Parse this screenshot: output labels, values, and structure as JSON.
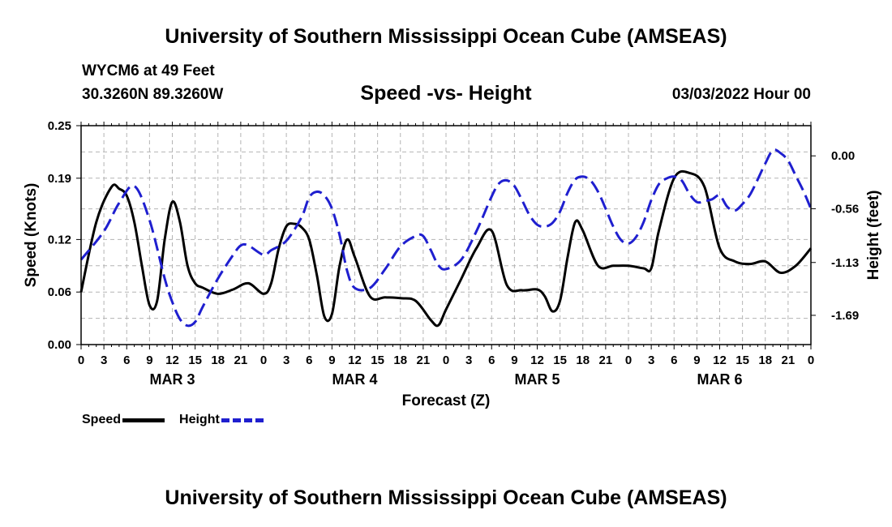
{
  "header": {
    "title": "University of Southern Mississippi Ocean Cube (AMSEAS)",
    "station": "WYCM6 at 49 Feet",
    "coords": "30.3260N  89.3260W",
    "subtitle": "Speed -vs- Height",
    "datetime": "03/03/2022 Hour 00"
  },
  "footer": {
    "title": "University of Southern Mississippi Ocean Cube (AMSEAS)"
  },
  "legend": {
    "speed": "Speed",
    "height": "Height"
  },
  "colors": {
    "speed": "#000000",
    "height": "#1f1fcf",
    "grid": "#b4b4b4"
  },
  "chart_data": {
    "type": "line",
    "title": "Speed -vs- Height",
    "xlabel": "Forecast (Z)",
    "ylabel": "Speed (Knots)",
    "y2label": "Height (feet)",
    "x_range": [
      0,
      96
    ],
    "x_tick_labels": [
      "0",
      "3",
      "6",
      "9",
      "12",
      "15",
      "18",
      "21",
      "0",
      "3",
      "6",
      "9",
      "12",
      "15",
      "18",
      "21",
      "0",
      "3",
      "6",
      "9",
      "12",
      "15",
      "18",
      "21",
      "0",
      "3",
      "6",
      "9",
      "12",
      "15",
      "18",
      "21",
      "0"
    ],
    "day_labels": [
      "MAR 3",
      "MAR 4",
      "MAR 5",
      "MAR 6"
    ],
    "ylim": [
      0,
      0.25
    ],
    "yticks": [
      "0.00",
      "0.06",
      "0.12",
      "0.19",
      "0.25"
    ],
    "y2lim": [
      -2.0,
      0.32
    ],
    "y2ticks": [
      "0.00",
      "-0.56",
      "-1.13",
      "-1.69"
    ],
    "series": [
      {
        "name": "Speed",
        "axis": "left",
        "x": [
          0,
          2,
          4,
          5,
          6,
          7,
          8,
          9,
          10,
          11,
          12,
          13,
          14,
          15,
          16,
          18,
          20,
          22,
          24,
          25,
          26,
          27,
          28,
          29,
          30,
          31,
          32,
          33,
          34,
          35,
          36,
          38,
          40,
          42,
          44,
          46,
          47,
          48,
          50,
          52,
          54,
          56,
          58,
          60,
          61,
          62,
          63,
          64,
          65,
          66,
          68,
          70,
          72,
          74,
          75,
          76,
          78,
          80,
          82,
          84,
          86,
          88,
          90,
          92,
          94,
          96
        ],
        "y": [
          0.06,
          0.14,
          0.18,
          0.178,
          0.17,
          0.14,
          0.09,
          0.045,
          0.05,
          0.12,
          0.163,
          0.14,
          0.09,
          0.07,
          0.065,
          0.058,
          0.063,
          0.07,
          0.058,
          0.07,
          0.11,
          0.135,
          0.138,
          0.134,
          0.12,
          0.08,
          0.032,
          0.035,
          0.09,
          0.12,
          0.1,
          0.055,
          0.054,
          0.053,
          0.05,
          0.028,
          0.022,
          0.04,
          0.075,
          0.11,
          0.13,
          0.068,
          0.062,
          0.063,
          0.055,
          0.038,
          0.05,
          0.1,
          0.14,
          0.13,
          0.09,
          0.09,
          0.09,
          0.087,
          0.087,
          0.13,
          0.19,
          0.196,
          0.18,
          0.11,
          0.095,
          0.092,
          0.095,
          0.082,
          0.09,
          0.11
        ]
      },
      {
        "name": "Height",
        "axis": "right",
        "x": [
          0,
          3,
          5,
          7,
          9,
          11,
          12,
          13,
          14,
          15,
          16,
          18,
          20,
          21,
          22,
          24,
          25,
          27,
          29,
          30,
          31,
          32,
          33,
          34,
          35,
          36,
          38,
          40,
          42,
          44,
          45,
          46,
          47,
          48,
          50,
          52,
          54,
          55,
          56,
          57,
          58,
          59,
          60,
          61,
          62,
          63,
          64,
          65,
          66,
          67,
          68,
          69,
          70,
          71,
          72,
          73,
          74,
          75,
          76,
          77,
          78,
          79,
          80,
          81,
          82,
          83,
          84,
          85,
          86,
          87,
          88,
          89,
          90,
          91,
          92,
          93,
          94,
          95,
          96
        ],
        "y": [
          -1.1,
          -0.8,
          -0.5,
          -0.32,
          -0.68,
          -1.3,
          -1.55,
          -1.73,
          -1.8,
          -1.76,
          -1.6,
          -1.3,
          -1.05,
          -0.95,
          -0.95,
          -1.05,
          -1.0,
          -0.9,
          -0.65,
          -0.44,
          -0.38,
          -0.42,
          -0.56,
          -0.84,
          -1.22,
          -1.4,
          -1.4,
          -1.2,
          -0.96,
          -0.85,
          -0.85,
          -1.0,
          -1.16,
          -1.2,
          -1.1,
          -0.8,
          -0.43,
          -0.29,
          -0.26,
          -0.32,
          -0.47,
          -0.63,
          -0.73,
          -0.75,
          -0.71,
          -0.59,
          -0.39,
          -0.25,
          -0.22,
          -0.26,
          -0.38,
          -0.56,
          -0.75,
          -0.89,
          -0.93,
          -0.86,
          -0.7,
          -0.47,
          -0.3,
          -0.24,
          -0.22,
          -0.26,
          -0.4,
          -0.49,
          -0.48,
          -0.46,
          -0.42,
          -0.54,
          -0.58,
          -0.51,
          -0.41,
          -0.25,
          -0.08,
          0.06,
          0.03,
          -0.05,
          -0.21,
          -0.37,
          -0.56
        ]
      }
    ]
  }
}
